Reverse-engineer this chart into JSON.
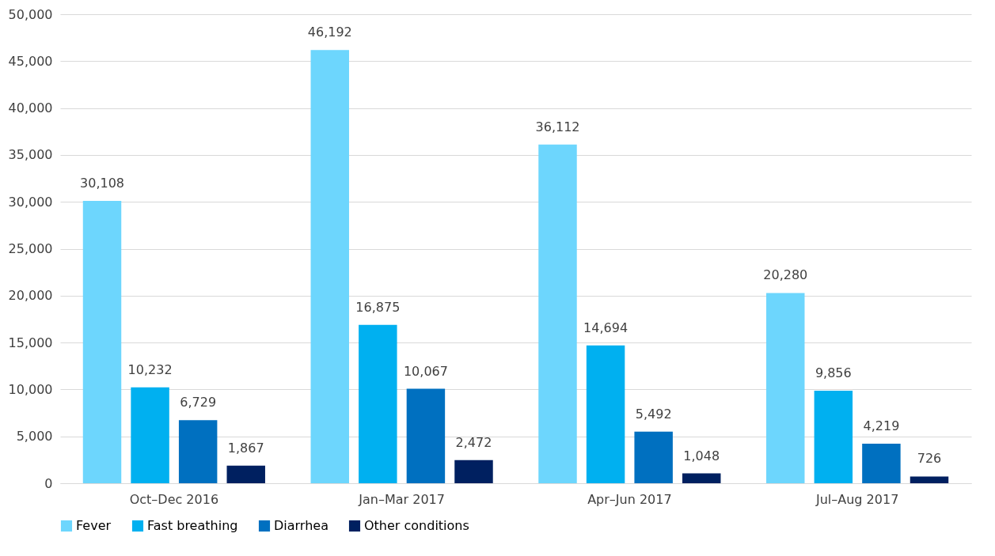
{
  "chart_data": {
    "type": "bar",
    "categories": [
      "Oct–Dec 2016",
      "Jan–Mar 2017",
      "Apr–Jun 2017",
      "Jul–Aug 2017"
    ],
    "series": [
      {
        "name": "Fever",
        "color": "#6dd6fd",
        "values": [
          30108,
          46192,
          36112,
          20280
        ],
        "value_labels": [
          "30,108",
          "46,192",
          "36,112",
          "20,280"
        ]
      },
      {
        "name": "Fast breathing",
        "color": "#00b0f0",
        "values": [
          10232,
          16875,
          14694,
          9856
        ],
        "value_labels": [
          "10,232",
          "16,875",
          "14,694",
          "9,856"
        ]
      },
      {
        "name": "Diarrhea",
        "color": "#0070c0",
        "values": [
          6729,
          10067,
          5492,
          4219
        ],
        "value_labels": [
          "6,729",
          "10,067",
          "5,492",
          "4,219"
        ]
      },
      {
        "name": "Other conditions",
        "color": "#002060",
        "values": [
          1867,
          2472,
          1048,
          726
        ],
        "value_labels": [
          "1,867",
          "2,472",
          "1,048",
          "726"
        ]
      }
    ],
    "ylim": [
      0,
      50000
    ],
    "yticks": [
      0,
      {
        "value": 5000,
        "label": "5,000"
      },
      {
        "value": 10000,
        "label": "10,000"
      },
      {
        "value": 15000,
        "label": "15,000"
      },
      {
        "value": 20000,
        "label": "20,000"
      },
      {
        "value": 25000,
        "label": "25,000"
      },
      {
        "value": 30000,
        "label": "30,000"
      },
      {
        "value": 35000,
        "label": "35,000"
      },
      {
        "value": 40000,
        "label": "40,000"
      },
      {
        "value": 45000,
        "label": "45,000"
      },
      {
        "value": 50000,
        "label": "50,000"
      }
    ],
    "grid": "y",
    "legend": "bottom"
  }
}
